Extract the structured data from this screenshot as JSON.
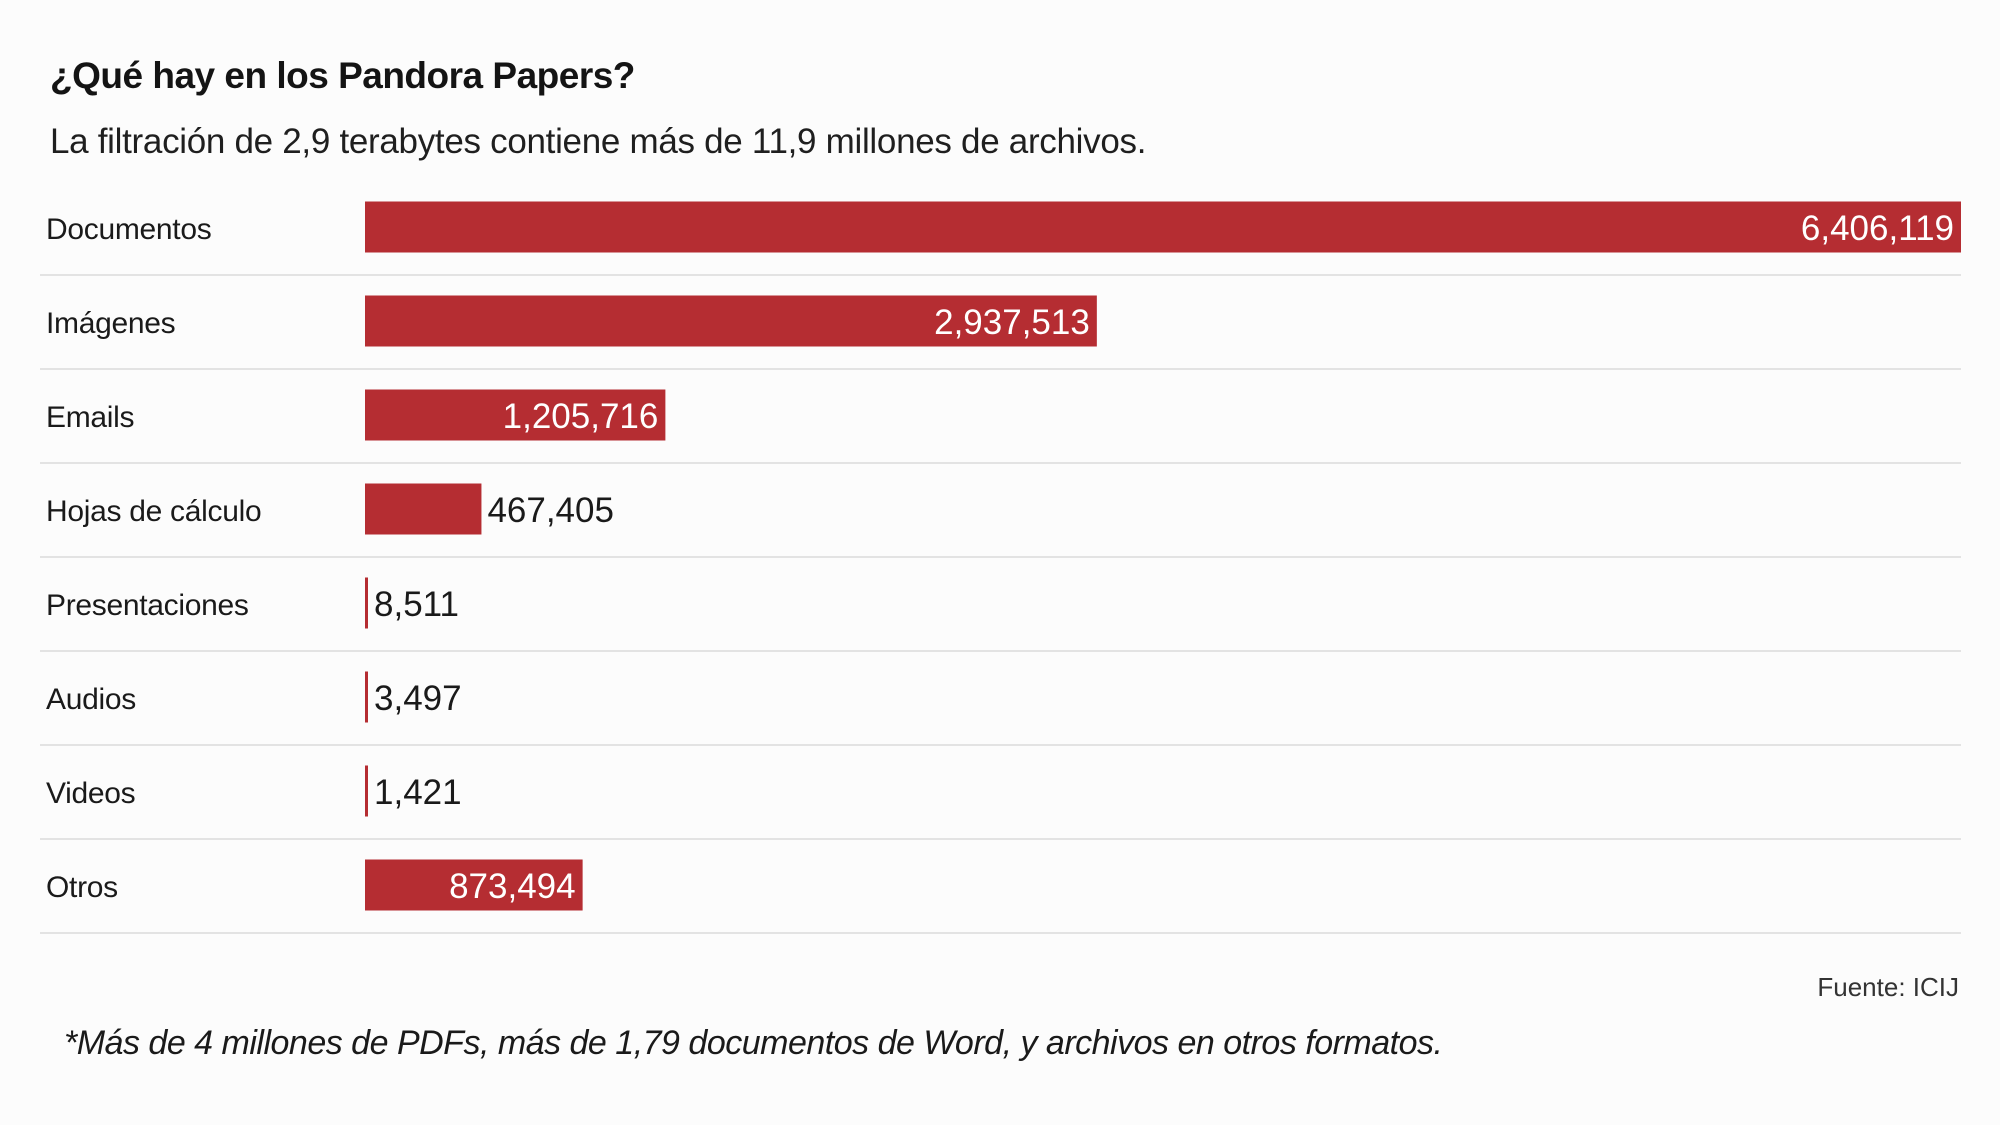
{
  "header": {
    "title": "¿Qué hay en los Pandora Papers?",
    "subtitle": "La filtración de 2,9 terabytes contiene más de 11,9 millones de archivos."
  },
  "footer": {
    "source": "Fuente: ICIJ",
    "footnote": "*Más de 4 millones de PDFs, más de 1,79 documentos de Word, y archivos en otros formatos."
  },
  "colors": {
    "bar": "#b52d32",
    "divider": "#e3e3e3",
    "label_inside": "#ffffff",
    "label_outside": "#1a1a1a"
  },
  "chart_data": {
    "type": "bar",
    "orientation": "horizontal",
    "categories": [
      "Documentos",
      "Imágenes",
      "Emails",
      "Hojas de cálculo",
      "Presentaciones",
      "Audios",
      "Videos",
      "Otros"
    ],
    "values": [
      6406119,
      2937513,
      1205716,
      467405,
      8511,
      3497,
      1421,
      873494
    ],
    "value_labels": [
      "6,406,119",
      "2,937,513",
      "1,205,716",
      "467,405",
      "8,511",
      "3,497",
      "1,421",
      "873,494"
    ],
    "title": "¿Qué hay en los Pandora Papers?",
    "xlabel": "",
    "ylabel": "",
    "grid": false,
    "legend": "none"
  }
}
